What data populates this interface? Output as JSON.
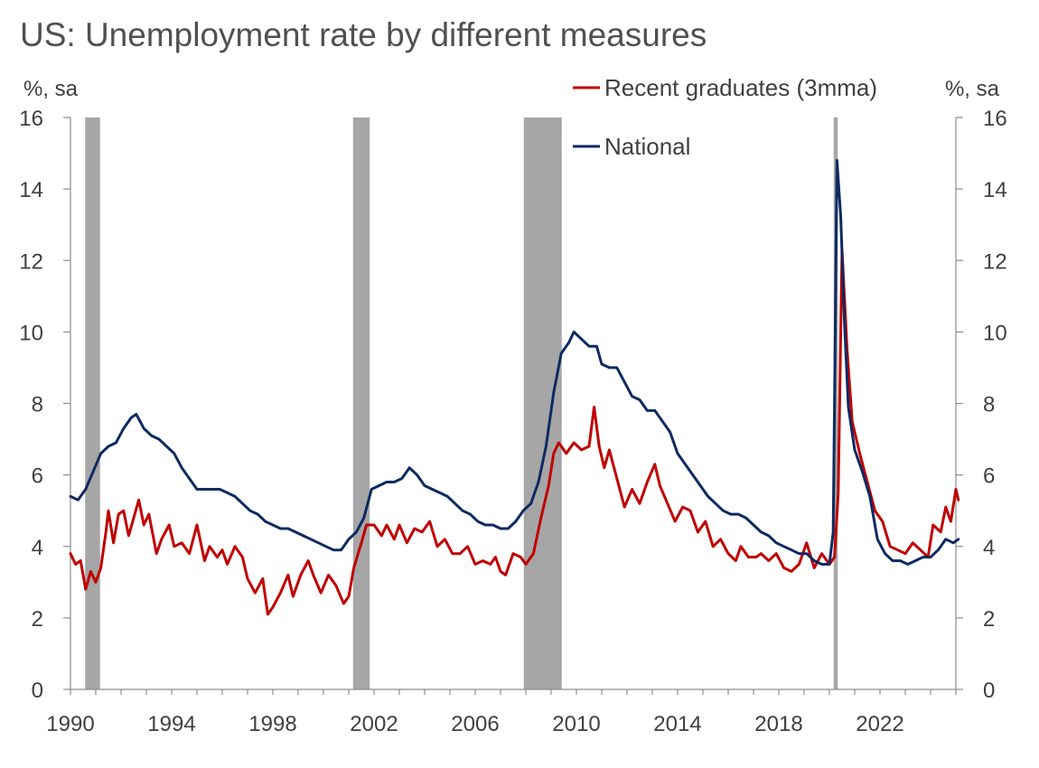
{
  "chart_data": {
    "type": "line",
    "title": "US: Unemployment rate by different measures",
    "ylabel_left": "%, sa",
    "ylabel_right": "%, sa",
    "ylim": [
      0,
      16
    ],
    "yticks": [
      0,
      2,
      4,
      6,
      8,
      10,
      12,
      14,
      16
    ],
    "xlim": [
      1990.0,
      2025.0
    ],
    "xticks": [
      1990,
      1994,
      1998,
      2002,
      2006,
      2010,
      2014,
      2018,
      2022
    ],
    "grid": false,
    "legend_position": "top-right",
    "recessions": [
      [
        1990.58,
        1991.17
      ],
      [
        2001.17,
        2001.83
      ],
      [
        2007.92,
        2009.42
      ],
      [
        2020.17,
        2020.33
      ]
    ],
    "recession_color": "#a6a6a6",
    "series": [
      {
        "name": "Recent graduates (3mma)",
        "color": "#c00000",
        "points": [
          [
            1990.0,
            3.8
          ],
          [
            1990.2,
            3.5
          ],
          [
            1990.4,
            3.6
          ],
          [
            1990.6,
            2.8
          ],
          [
            1990.8,
            3.3
          ],
          [
            1991.0,
            3.0
          ],
          [
            1991.2,
            3.4
          ],
          [
            1991.4,
            4.4
          ],
          [
            1991.5,
            5.0
          ],
          [
            1991.7,
            4.1
          ],
          [
            1991.9,
            4.9
          ],
          [
            1992.1,
            5.0
          ],
          [
            1992.3,
            4.3
          ],
          [
            1992.5,
            4.8
          ],
          [
            1992.7,
            5.3
          ],
          [
            1992.9,
            4.6
          ],
          [
            1993.1,
            4.9
          ],
          [
            1993.4,
            3.8
          ],
          [
            1993.6,
            4.2
          ],
          [
            1993.9,
            4.6
          ],
          [
            1994.1,
            4.0
          ],
          [
            1994.4,
            4.1
          ],
          [
            1994.7,
            3.8
          ],
          [
            1995.0,
            4.6
          ],
          [
            1995.3,
            3.6
          ],
          [
            1995.5,
            4.0
          ],
          [
            1995.8,
            3.7
          ],
          [
            1996.0,
            3.9
          ],
          [
            1996.2,
            3.5
          ],
          [
            1996.5,
            4.0
          ],
          [
            1996.8,
            3.7
          ],
          [
            1997.0,
            3.1
          ],
          [
            1997.3,
            2.7
          ],
          [
            1997.6,
            3.1
          ],
          [
            1997.8,
            2.1
          ],
          [
            1998.0,
            2.3
          ],
          [
            1998.3,
            2.7
          ],
          [
            1998.6,
            3.2
          ],
          [
            1998.8,
            2.6
          ],
          [
            1999.1,
            3.2
          ],
          [
            1999.4,
            3.6
          ],
          [
            1999.6,
            3.2
          ],
          [
            1999.9,
            2.7
          ],
          [
            2000.2,
            3.2
          ],
          [
            2000.5,
            2.9
          ],
          [
            2000.8,
            2.4
          ],
          [
            2001.0,
            2.6
          ],
          [
            2001.2,
            3.4
          ],
          [
            2001.5,
            4.1
          ],
          [
            2001.7,
            4.6
          ],
          [
            2002.0,
            4.6
          ],
          [
            2002.3,
            4.3
          ],
          [
            2002.5,
            4.6
          ],
          [
            2002.8,
            4.2
          ],
          [
            2003.0,
            4.6
          ],
          [
            2003.3,
            4.1
          ],
          [
            2003.6,
            4.5
          ],
          [
            2003.9,
            4.4
          ],
          [
            2004.2,
            4.7
          ],
          [
            2004.5,
            4.0
          ],
          [
            2004.8,
            4.2
          ],
          [
            2005.1,
            3.8
          ],
          [
            2005.4,
            3.8
          ],
          [
            2005.7,
            4.0
          ],
          [
            2006.0,
            3.5
          ],
          [
            2006.3,
            3.6
          ],
          [
            2006.6,
            3.5
          ],
          [
            2006.8,
            3.7
          ],
          [
            2007.0,
            3.3
          ],
          [
            2007.2,
            3.2
          ],
          [
            2007.5,
            3.8
          ],
          [
            2007.8,
            3.7
          ],
          [
            2008.0,
            3.5
          ],
          [
            2008.3,
            3.8
          ],
          [
            2008.6,
            4.8
          ],
          [
            2008.9,
            5.7
          ],
          [
            2009.1,
            6.6
          ],
          [
            2009.3,
            6.9
          ],
          [
            2009.6,
            6.6
          ],
          [
            2009.9,
            6.9
          ],
          [
            2010.2,
            6.7
          ],
          [
            2010.5,
            6.8
          ],
          [
            2010.7,
            7.9
          ],
          [
            2010.9,
            6.8
          ],
          [
            2011.1,
            6.2
          ],
          [
            2011.3,
            6.7
          ],
          [
            2011.6,
            5.9
          ],
          [
            2011.9,
            5.1
          ],
          [
            2012.2,
            5.6
          ],
          [
            2012.5,
            5.2
          ],
          [
            2012.8,
            5.8
          ],
          [
            2013.1,
            6.3
          ],
          [
            2013.3,
            5.7
          ],
          [
            2013.6,
            5.2
          ],
          [
            2013.9,
            4.7
          ],
          [
            2014.2,
            5.1
          ],
          [
            2014.5,
            5.0
          ],
          [
            2014.8,
            4.4
          ],
          [
            2015.1,
            4.7
          ],
          [
            2015.4,
            4.0
          ],
          [
            2015.7,
            4.2
          ],
          [
            2016.0,
            3.8
          ],
          [
            2016.3,
            3.6
          ],
          [
            2016.5,
            4.0
          ],
          [
            2016.8,
            3.7
          ],
          [
            2017.1,
            3.7
          ],
          [
            2017.3,
            3.8
          ],
          [
            2017.6,
            3.6
          ],
          [
            2017.9,
            3.8
          ],
          [
            2018.2,
            3.4
          ],
          [
            2018.5,
            3.3
          ],
          [
            2018.8,
            3.5
          ],
          [
            2019.1,
            4.1
          ],
          [
            2019.4,
            3.4
          ],
          [
            2019.7,
            3.8
          ],
          [
            2020.0,
            3.5
          ],
          [
            2020.2,
            3.7
          ],
          [
            2020.35,
            5.5
          ],
          [
            2020.5,
            12.3
          ],
          [
            2020.7,
            9.5
          ],
          [
            2020.9,
            7.5
          ],
          [
            2021.2,
            6.6
          ],
          [
            2021.5,
            5.8
          ],
          [
            2021.8,
            5.0
          ],
          [
            2022.1,
            4.7
          ],
          [
            2022.4,
            4.0
          ],
          [
            2022.7,
            3.9
          ],
          [
            2023.0,
            3.8
          ],
          [
            2023.3,
            4.1
          ],
          [
            2023.6,
            3.9
          ],
          [
            2023.9,
            3.7
          ],
          [
            2024.1,
            4.6
          ],
          [
            2024.4,
            4.4
          ],
          [
            2024.6,
            5.1
          ],
          [
            2024.8,
            4.7
          ],
          [
            2025.0,
            5.6
          ],
          [
            2025.1,
            5.3
          ]
        ]
      },
      {
        "name": "National",
        "color": "#0d2a62",
        "points": [
          [
            1990.0,
            5.4
          ],
          [
            1990.3,
            5.3
          ],
          [
            1990.6,
            5.6
          ],
          [
            1990.9,
            6.1
          ],
          [
            1991.2,
            6.6
          ],
          [
            1991.5,
            6.8
          ],
          [
            1991.8,
            6.9
          ],
          [
            1992.1,
            7.3
          ],
          [
            1992.4,
            7.6
          ],
          [
            1992.6,
            7.7
          ],
          [
            1992.9,
            7.3
          ],
          [
            1993.2,
            7.1
          ],
          [
            1993.5,
            7.0
          ],
          [
            1993.8,
            6.8
          ],
          [
            1994.1,
            6.6
          ],
          [
            1994.4,
            6.2
          ],
          [
            1994.7,
            5.9
          ],
          [
            1995.0,
            5.6
          ],
          [
            1995.3,
            5.6
          ],
          [
            1995.6,
            5.6
          ],
          [
            1995.9,
            5.6
          ],
          [
            1996.2,
            5.5
          ],
          [
            1996.5,
            5.4
          ],
          [
            1996.8,
            5.2
          ],
          [
            1997.1,
            5.0
          ],
          [
            1997.4,
            4.9
          ],
          [
            1997.7,
            4.7
          ],
          [
            1998.0,
            4.6
          ],
          [
            1998.3,
            4.5
          ],
          [
            1998.6,
            4.5
          ],
          [
            1998.9,
            4.4
          ],
          [
            1999.2,
            4.3
          ],
          [
            1999.5,
            4.2
          ],
          [
            1999.8,
            4.1
          ],
          [
            2000.1,
            4.0
          ],
          [
            2000.4,
            3.9
          ],
          [
            2000.7,
            3.9
          ],
          [
            2001.0,
            4.2
          ],
          [
            2001.3,
            4.4
          ],
          [
            2001.6,
            4.8
          ],
          [
            2001.9,
            5.6
          ],
          [
            2002.2,
            5.7
          ],
          [
            2002.5,
            5.8
          ],
          [
            2002.8,
            5.8
          ],
          [
            2003.1,
            5.9
          ],
          [
            2003.4,
            6.2
          ],
          [
            2003.7,
            6.0
          ],
          [
            2004.0,
            5.7
          ],
          [
            2004.3,
            5.6
          ],
          [
            2004.6,
            5.5
          ],
          [
            2004.9,
            5.4
          ],
          [
            2005.2,
            5.2
          ],
          [
            2005.5,
            5.0
          ],
          [
            2005.8,
            4.9
          ],
          [
            2006.1,
            4.7
          ],
          [
            2006.4,
            4.6
          ],
          [
            2006.7,
            4.6
          ],
          [
            2007.0,
            4.5
          ],
          [
            2007.3,
            4.5
          ],
          [
            2007.6,
            4.7
          ],
          [
            2007.9,
            5.0
          ],
          [
            2008.2,
            5.2
          ],
          [
            2008.5,
            5.8
          ],
          [
            2008.8,
            6.8
          ],
          [
            2009.1,
            8.3
          ],
          [
            2009.4,
            9.4
          ],
          [
            2009.7,
            9.7
          ],
          [
            2009.9,
            10.0
          ],
          [
            2010.2,
            9.8
          ],
          [
            2010.5,
            9.6
          ],
          [
            2010.8,
            9.6
          ],
          [
            2011.0,
            9.1
          ],
          [
            2011.3,
            9.0
          ],
          [
            2011.6,
            9.0
          ],
          [
            2011.9,
            8.6
          ],
          [
            2012.2,
            8.2
          ],
          [
            2012.5,
            8.1
          ],
          [
            2012.8,
            7.8
          ],
          [
            2013.1,
            7.8
          ],
          [
            2013.4,
            7.5
          ],
          [
            2013.7,
            7.2
          ],
          [
            2014.0,
            6.6
          ],
          [
            2014.3,
            6.3
          ],
          [
            2014.6,
            6.0
          ],
          [
            2014.9,
            5.7
          ],
          [
            2015.2,
            5.4
          ],
          [
            2015.5,
            5.2
          ],
          [
            2015.8,
            5.0
          ],
          [
            2016.1,
            4.9
          ],
          [
            2016.4,
            4.9
          ],
          [
            2016.7,
            4.8
          ],
          [
            2017.0,
            4.6
          ],
          [
            2017.3,
            4.4
          ],
          [
            2017.6,
            4.3
          ],
          [
            2017.9,
            4.1
          ],
          [
            2018.2,
            4.0
          ],
          [
            2018.5,
            3.9
          ],
          [
            2018.8,
            3.8
          ],
          [
            2019.1,
            3.8
          ],
          [
            2019.4,
            3.6
          ],
          [
            2019.7,
            3.5
          ],
          [
            2020.0,
            3.5
          ],
          [
            2020.15,
            4.4
          ],
          [
            2020.3,
            14.8
          ],
          [
            2020.45,
            13.2
          ],
          [
            2020.6,
            10.2
          ],
          [
            2020.75,
            7.9
          ],
          [
            2021.0,
            6.7
          ],
          [
            2021.3,
            6.1
          ],
          [
            2021.6,
            5.4
          ],
          [
            2021.9,
            4.2
          ],
          [
            2022.2,
            3.8
          ],
          [
            2022.5,
            3.6
          ],
          [
            2022.8,
            3.6
          ],
          [
            2023.1,
            3.5
          ],
          [
            2023.4,
            3.6
          ],
          [
            2023.7,
            3.7
          ],
          [
            2024.0,
            3.7
          ],
          [
            2024.3,
            3.9
          ],
          [
            2024.6,
            4.2
          ],
          [
            2024.9,
            4.1
          ],
          [
            2025.1,
            4.2
          ]
        ]
      }
    ]
  }
}
